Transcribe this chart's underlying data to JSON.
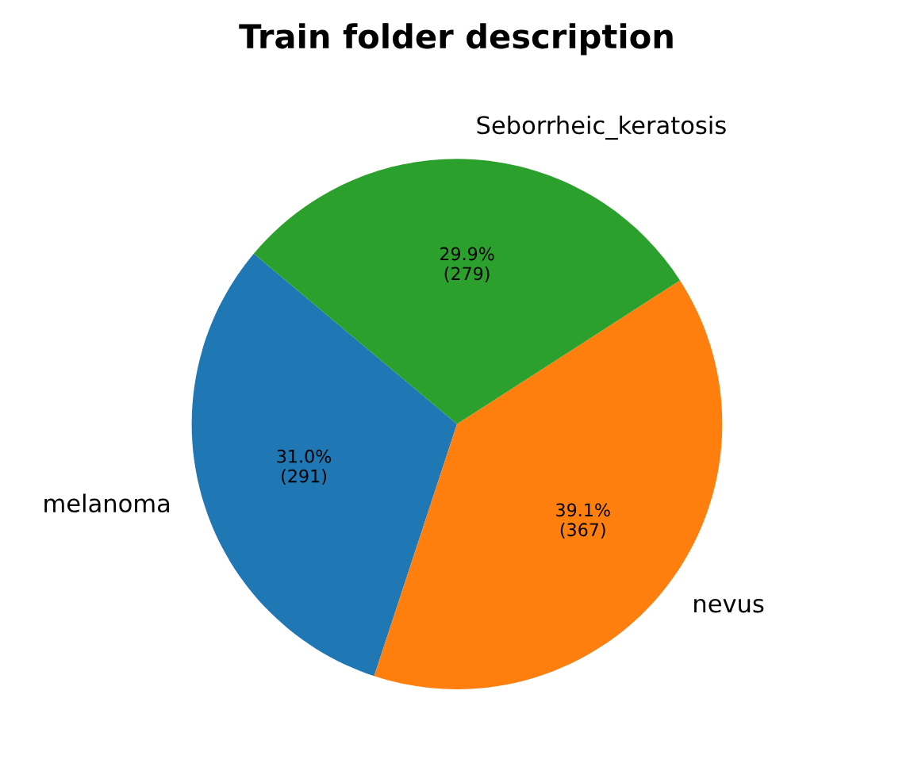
{
  "chart_data": {
    "type": "pie",
    "title": "Train folder description",
    "categories": [
      "melanoma",
      "nevus",
      "Seborrheic_keratosis"
    ],
    "values": [
      291,
      367,
      279
    ],
    "colors": [
      "#1f77b4",
      "#ff7f0e",
      "#2ca02c"
    ],
    "value_labels": [
      "31.0%\n(291)",
      "39.1%\n(367)",
      "29.9%\n(279)"
    ]
  }
}
